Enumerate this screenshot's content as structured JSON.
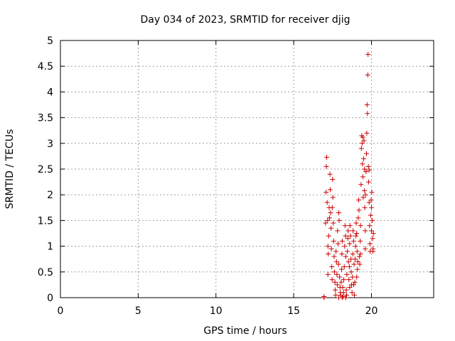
{
  "chart_data": {
    "type": "scatter",
    "title": "Day 034 of 2023, SRMTID for receiver djig",
    "xlabel": "GPS time / hours",
    "ylabel": "SRMTID / TECUs",
    "xlim": [
      0,
      24
    ],
    "ylim": [
      0,
      5
    ],
    "xticks": [
      0,
      5,
      10,
      15,
      20
    ],
    "yticks": [
      0,
      0.5,
      1,
      1.5,
      2,
      2.5,
      3,
      3.5,
      4,
      4.5,
      5
    ],
    "ytick_labels": [
      "0",
      "0.5",
      "1",
      "1.5",
      "2",
      "2.5",
      "3",
      "3.5",
      "4",
      "4.5",
      "5"
    ],
    "grid": true,
    "marker": "+",
    "color": "#cc0000",
    "series": [
      {
        "name": "SRMTID",
        "points": [
          [
            16.95,
            0.0
          ],
          [
            16.95,
            0.02
          ],
          [
            17.05,
            1.45
          ],
          [
            17.08,
            2.05
          ],
          [
            17.1,
            2.55
          ],
          [
            17.12,
            2.73
          ],
          [
            17.15,
            1.85
          ],
          [
            17.18,
            1.5
          ],
          [
            17.2,
            1.0
          ],
          [
            17.22,
            0.85
          ],
          [
            17.25,
            1.2
          ],
          [
            17.28,
            1.75
          ],
          [
            17.3,
            1.55
          ],
          [
            17.33,
            2.4
          ],
          [
            17.35,
            2.1
          ],
          [
            17.37,
            1.65
          ],
          [
            17.4,
            1.35
          ],
          [
            17.42,
            0.95
          ],
          [
            17.45,
            0.6
          ],
          [
            17.47,
            0.35
          ],
          [
            17.5,
            2.3
          ],
          [
            17.52,
            1.95
          ],
          [
            17.55,
            1.45
          ],
          [
            17.57,
            1.1
          ],
          [
            17.6,
            0.8
          ],
          [
            17.62,
            0.5
          ],
          [
            17.65,
            0.3
          ],
          [
            17.67,
            0.15
          ],
          [
            17.7,
            0.05
          ],
          [
            17.72,
            0.9
          ],
          [
            17.75,
            0.7
          ],
          [
            17.78,
            0.45
          ],
          [
            17.8,
            0.25
          ],
          [
            17.82,
            1.3
          ],
          [
            17.85,
            1.05
          ],
          [
            17.88,
            0.65
          ],
          [
            17.9,
            1.65
          ],
          [
            17.92,
            1.5
          ],
          [
            17.95,
            0.4
          ],
          [
            17.98,
            0.2
          ],
          [
            18.0,
            0.1
          ],
          [
            18.02,
            0.05
          ],
          [
            18.05,
            0.3
          ],
          [
            18.08,
            0.55
          ],
          [
            18.1,
            0.85
          ],
          [
            18.12,
            1.1
          ],
          [
            18.15,
            0.2
          ],
          [
            18.18,
            0.02
          ],
          [
            18.2,
            0.1
          ],
          [
            18.22,
            0.35
          ],
          [
            18.25,
            0.6
          ],
          [
            18.28,
            1.0
          ],
          [
            18.3,
            1.4
          ],
          [
            18.33,
            1.2
          ],
          [
            18.35,
            0.8
          ],
          [
            18.38,
            0.15
          ],
          [
            18.4,
            0.05
          ],
          [
            18.42,
            0.45
          ],
          [
            18.45,
            0.9
          ],
          [
            18.48,
            1.15
          ],
          [
            18.5,
            1.3
          ],
          [
            18.52,
            0.7
          ],
          [
            18.55,
            0.35
          ],
          [
            18.58,
            0.6
          ],
          [
            18.6,
            1.05
          ],
          [
            18.62,
            1.4
          ],
          [
            18.65,
            1.2
          ],
          [
            18.68,
            0.75
          ],
          [
            18.7,
            0.5
          ],
          [
            18.72,
            0.25
          ],
          [
            18.75,
            0.1
          ],
          [
            18.78,
            0.4
          ],
          [
            18.8,
            0.85
          ],
          [
            18.82,
            1.3
          ],
          [
            18.85,
            1.1
          ],
          [
            18.88,
            0.65
          ],
          [
            18.9,
            0.05
          ],
          [
            18.93,
            0.3
          ],
          [
            18.95,
            0.75
          ],
          [
            18.98,
            1.0
          ],
          [
            19.0,
            1.2
          ],
          [
            19.02,
            1.45
          ],
          [
            19.05,
            1.25
          ],
          [
            19.08,
            0.9
          ],
          [
            19.1,
            0.55
          ],
          [
            19.12,
            0.7
          ],
          [
            19.15,
            1.55
          ],
          [
            19.18,
            1.9
          ],
          [
            19.2,
            1.7
          ],
          [
            19.22,
            0.8
          ],
          [
            19.25,
            0.65
          ],
          [
            19.28,
            1.1
          ],
          [
            19.3,
            1.4
          ],
          [
            19.33,
            2.2
          ],
          [
            19.35,
            2.9
          ],
          [
            19.37,
            3.15
          ],
          [
            19.4,
            3.0
          ],
          [
            19.42,
            2.6
          ],
          [
            19.45,
            2.35
          ],
          [
            19.47,
            1.95
          ],
          [
            19.5,
            2.7
          ],
          [
            19.52,
            3.05
          ],
          [
            19.55,
            2.5
          ],
          [
            19.57,
            1.75
          ],
          [
            19.6,
            1.3
          ],
          [
            19.62,
            2.0
          ],
          [
            19.65,
            2.45
          ],
          [
            19.68,
            2.8
          ],
          [
            19.7,
            3.2
          ],
          [
            19.72,
            3.75
          ],
          [
            19.74,
            3.58
          ],
          [
            19.76,
            4.33
          ],
          [
            19.78,
            4.73
          ],
          [
            19.8,
            2.55
          ],
          [
            19.82,
            2.25
          ],
          [
            19.85,
            1.85
          ],
          [
            19.88,
            1.4
          ],
          [
            19.9,
            1.05
          ],
          [
            19.92,
            0.9
          ],
          [
            19.95,
            1.6
          ],
          [
            19.98,
            1.9
          ],
          [
            20.0,
            1.75
          ],
          [
            20.02,
            2.05
          ],
          [
            20.05,
            1.5
          ],
          [
            20.08,
            1.15
          ],
          [
            20.1,
            0.95
          ],
          [
            20.12,
            1.25
          ],
          [
            17.2,
            0.45
          ],
          [
            17.48,
            1.75
          ],
          [
            17.9,
            0.0
          ],
          [
            18.12,
            0.0
          ],
          [
            18.35,
            0.0
          ],
          [
            18.6,
            0.2
          ],
          [
            18.85,
            0.25
          ],
          [
            19.05,
            0.4
          ],
          [
            19.3,
            0.85
          ],
          [
            19.6,
            0.95
          ],
          [
            19.45,
            3.12
          ],
          [
            19.55,
            2.08
          ],
          [
            19.85,
            2.48
          ],
          [
            20.0,
            1.3
          ],
          [
            20.1,
            0.9
          ]
        ]
      }
    ]
  }
}
